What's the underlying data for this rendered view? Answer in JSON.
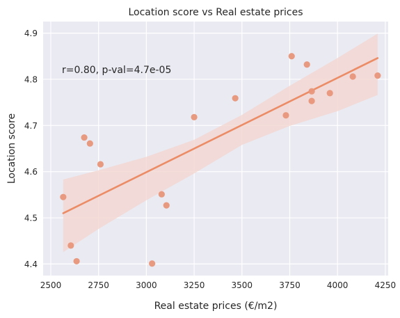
{
  "chart_data": {
    "type": "scatter",
    "title": "Location score vs Real estate prices",
    "xlabel": "Real estate prices (€/m2)",
    "ylabel": "Location score",
    "xlim": [
      2460,
      4265
    ],
    "ylim": [
      4.375,
      4.925
    ],
    "xticks": [
      2500,
      2750,
      3000,
      3250,
      3500,
      3750,
      4000,
      4250
    ],
    "yticks": [
      4.4,
      4.5,
      4.6,
      4.7,
      4.8,
      4.9
    ],
    "xtick_labels": [
      "2500",
      "2750",
      "3000",
      "3250",
      "3500",
      "3750",
      "4000",
      "4250"
    ],
    "ytick_labels": [
      "4.4",
      "4.5",
      "4.6",
      "4.7",
      "4.8",
      "4.9"
    ],
    "grid": true,
    "annotation": "r=0.80, p-val=4.7e-05",
    "points": [
      {
        "x": 2565,
        "y": 4.545
      },
      {
        "x": 2605,
        "y": 4.44
      },
      {
        "x": 2635,
        "y": 4.406
      },
      {
        "x": 2675,
        "y": 4.674
      },
      {
        "x": 2705,
        "y": 4.661
      },
      {
        "x": 2760,
        "y": 4.616
      },
      {
        "x": 3030,
        "y": 4.401
      },
      {
        "x": 3080,
        "y": 4.551
      },
      {
        "x": 3105,
        "y": 4.527
      },
      {
        "x": 3250,
        "y": 4.718
      },
      {
        "x": 3465,
        "y": 4.759
      },
      {
        "x": 3730,
        "y": 4.722
      },
      {
        "x": 3760,
        "y": 4.85
      },
      {
        "x": 3840,
        "y": 4.832
      },
      {
        "x": 3865,
        "y": 4.774
      },
      {
        "x": 3865,
        "y": 4.753
      },
      {
        "x": 3960,
        "y": 4.77
      },
      {
        "x": 4080,
        "y": 4.806
      },
      {
        "x": 4210,
        "y": 4.808
      }
    ],
    "regression": {
      "x": [
        2565,
        4210
      ],
      "y": [
        4.51,
        4.846
      ]
    },
    "confidence_band": {
      "x": [
        2565,
        2750,
        3000,
        3250,
        3500,
        3750,
        4000,
        4210
      ],
      "upper": [
        4.583,
        4.603,
        4.632,
        4.669,
        4.723,
        4.786,
        4.846,
        4.899
      ],
      "lower": [
        4.426,
        4.476,
        4.538,
        4.596,
        4.658,
        4.699,
        4.731,
        4.766
      ]
    },
    "colors": {
      "background": "#eaeaf2",
      "grid": "#ffffff",
      "points": "#e8967a",
      "line": "#eb8c66",
      "band": "#f3d4ce"
    }
  }
}
